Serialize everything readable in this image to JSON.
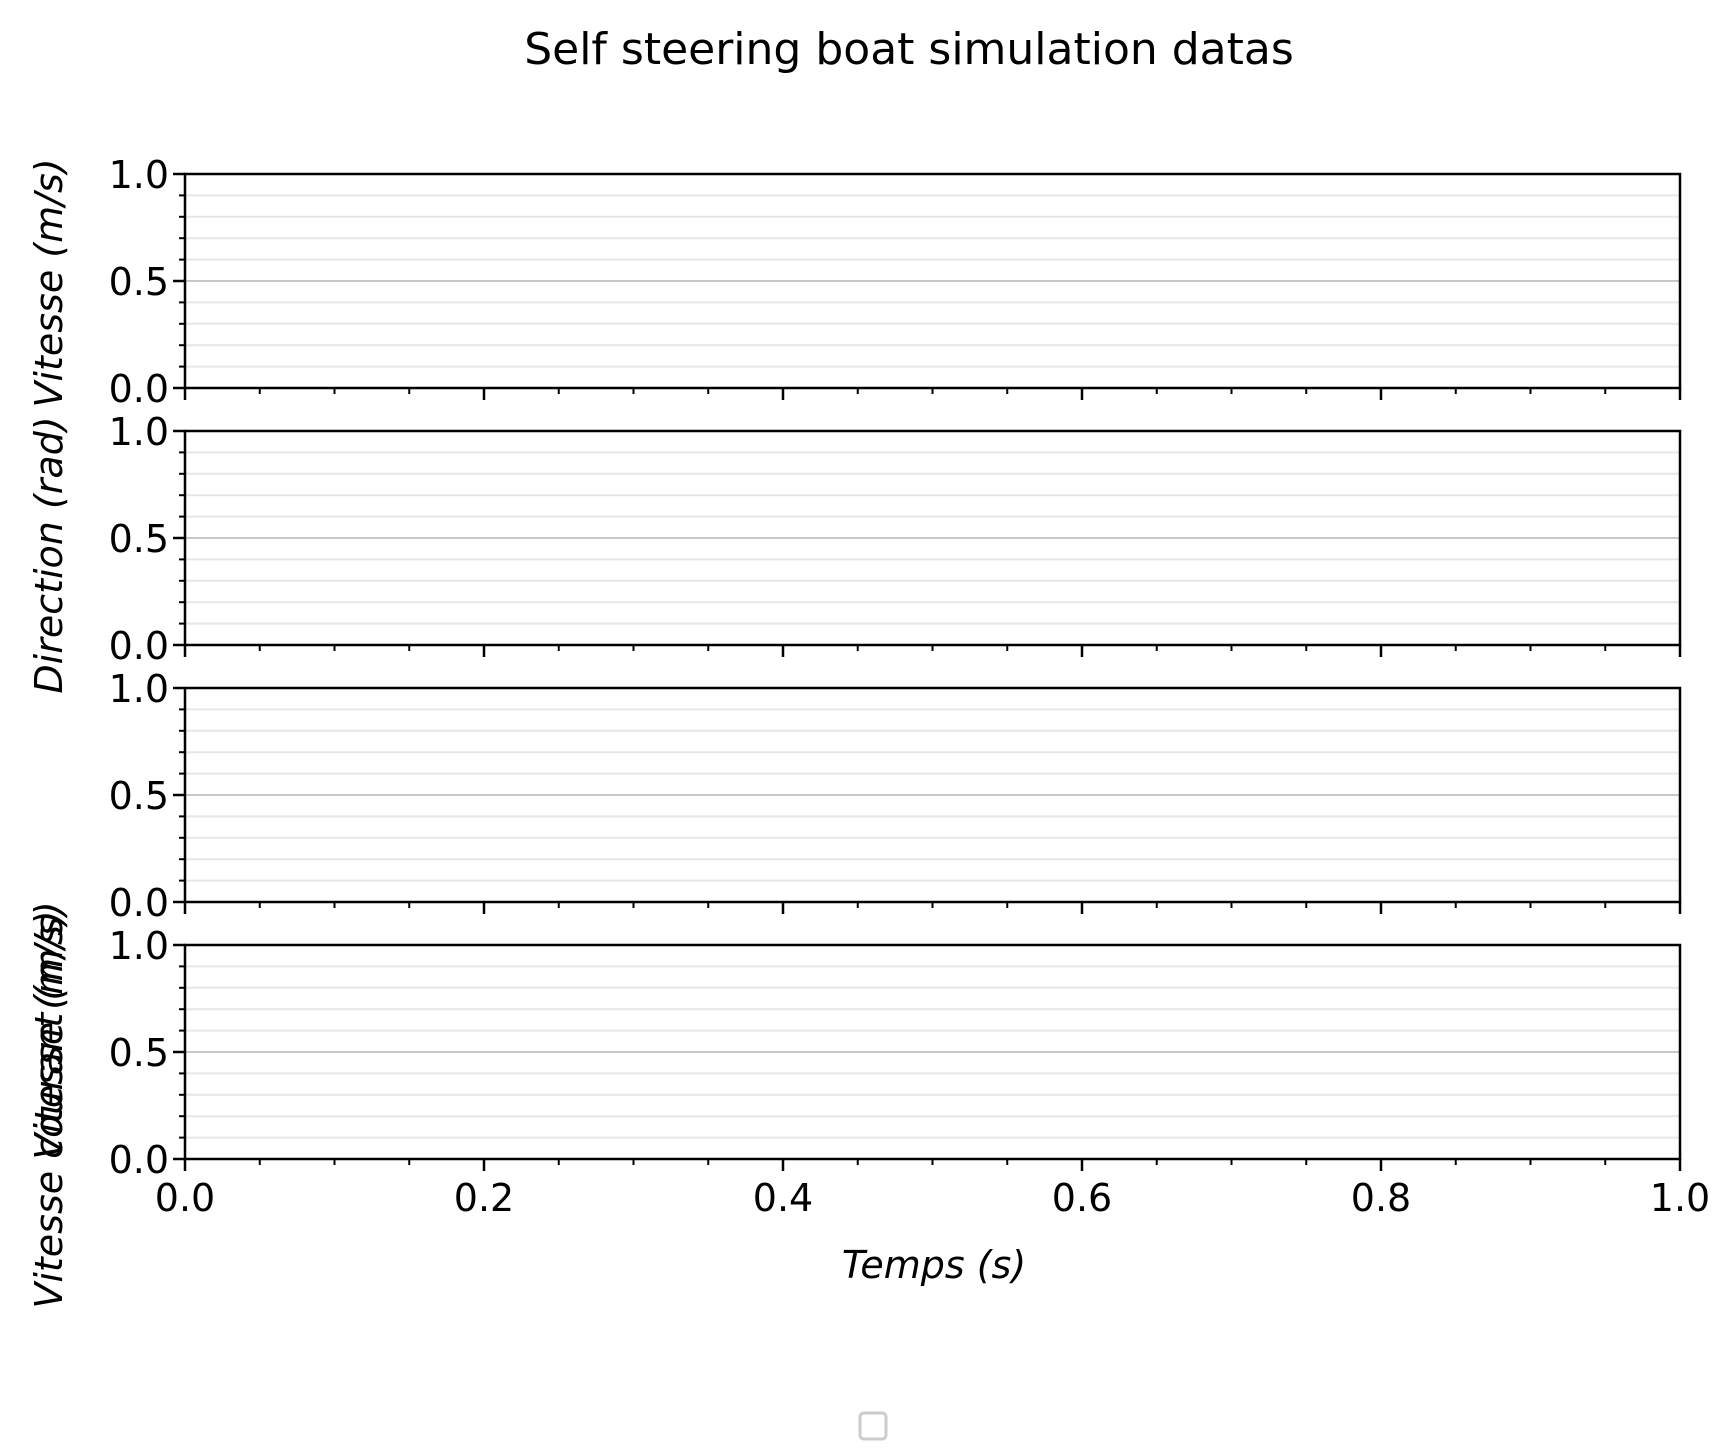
{
  "figure": {
    "title": "Self steering boat simulation datas",
    "xlabel": "Temps (s)",
    "legend_location": "lower-center",
    "legend_entries": []
  },
  "chart_data": [
    {
      "type": "line",
      "title": "",
      "xlabel": "",
      "ylabel": "Vitesse (m/s)",
      "xlim": [
        0.0,
        1.0
      ],
      "ylim": [
        0.0,
        1.0
      ],
      "xticks": [
        "0.0",
        "0.2",
        "0.4",
        "0.6",
        "0.8",
        "1.0"
      ],
      "yticks": [
        "0.0",
        "0.5",
        "1.0"
      ],
      "grid": true,
      "series": []
    },
    {
      "type": "line",
      "title": "",
      "xlabel": "",
      "ylabel": "Direction (rad)",
      "xlim": [
        0.0,
        1.0
      ],
      "ylim": [
        0.0,
        1.0
      ],
      "xticks": [
        "0.0",
        "0.2",
        "0.4",
        "0.6",
        "0.8",
        "1.0"
      ],
      "yticks": [
        "0.0",
        "0.5",
        "1.0"
      ],
      "grid": true,
      "series": []
    },
    {
      "type": "line",
      "title": "",
      "xlabel": "",
      "ylabel": "Vitesse (m/s)",
      "xlim": [
        0.0,
        1.0
      ],
      "ylim": [
        0.0,
        1.0
      ],
      "xticks": [
        "0.0",
        "0.2",
        "0.4",
        "0.6",
        "0.8",
        "1.0"
      ],
      "yticks": [
        "0.0",
        "0.5",
        "1.0"
      ],
      "grid": true,
      "series": []
    },
    {
      "type": "line",
      "title": "",
      "xlabel": "Temps (s)",
      "ylabel": "Vitesse courant (m/s)",
      "xlim": [
        0.0,
        1.0
      ],
      "ylim": [
        0.0,
        1.0
      ],
      "xticks": [
        "0.0",
        "0.2",
        "0.4",
        "0.6",
        "0.8",
        "1.0"
      ],
      "yticks": [
        "0.0",
        "0.5",
        "1.0"
      ],
      "grid": true,
      "series": []
    }
  ]
}
